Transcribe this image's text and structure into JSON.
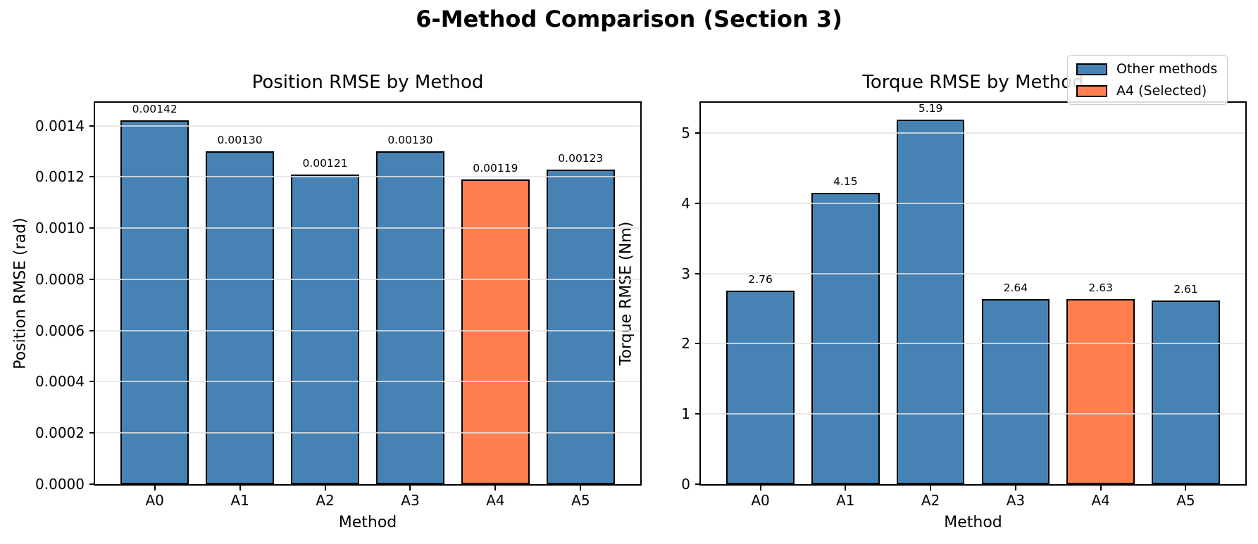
{
  "suptitle": "6-Method Comparison (Section 3)",
  "legend": {
    "entries": [
      {
        "label": "Other methods",
        "color": "#4682B4"
      },
      {
        "label": "A4 (Selected)",
        "color": "#FF7F50"
      }
    ]
  },
  "colors": {
    "bar": "#4682B4",
    "highlight": "#FF7F50",
    "bar_edge": "#000000",
    "grid": "rgba(227,227,227,0.8)",
    "axes_edge": "#000000",
    "background": "#ffffff"
  },
  "chart_data": [
    {
      "type": "bar",
      "title": "Position RMSE by Method",
      "xlabel": "Method",
      "ylabel": "Position RMSE (rad)",
      "categories": [
        "A0",
        "A1",
        "A2",
        "A3",
        "A4",
        "A5"
      ],
      "values": [
        0.00142,
        0.0013,
        0.00121,
        0.0013,
        0.00119,
        0.00123
      ],
      "bar_labels": [
        "0.00142",
        "0.00130",
        "0.00121",
        "0.00130",
        "0.00119",
        "0.00123"
      ],
      "highlight_index": 4,
      "highlight_category": "A4",
      "ylim": [
        0,
        0.00149
      ],
      "ytick_values": [
        0,
        0.0002,
        0.0004,
        0.0006,
        0.0008,
        0.001,
        0.0012,
        0.0014
      ],
      "ytick_labels": [
        "0.0000",
        "0.0002",
        "0.0004",
        "0.0006",
        "0.0008",
        "0.0010",
        "0.0012",
        "0.0014"
      ],
      "grid": true,
      "legend_position": "none"
    },
    {
      "type": "bar",
      "title": "Torque RMSE by Method",
      "xlabel": "Method",
      "ylabel": "Torque RMSE (Nm)",
      "categories": [
        "A0",
        "A1",
        "A2",
        "A3",
        "A4",
        "A5"
      ],
      "values": [
        2.76,
        4.15,
        5.19,
        2.64,
        2.63,
        2.61
      ],
      "bar_labels": [
        "2.76",
        "4.15",
        "5.19",
        "2.64",
        "2.63",
        "2.61"
      ],
      "highlight_index": 4,
      "highlight_category": "A4",
      "ylim": [
        0,
        5.43
      ],
      "ytick_values": [
        0,
        1,
        2,
        3,
        4,
        5
      ],
      "ytick_labels": [
        "0",
        "1",
        "2",
        "3",
        "4",
        "5"
      ],
      "grid": true,
      "legend_position": "upper right"
    }
  ]
}
